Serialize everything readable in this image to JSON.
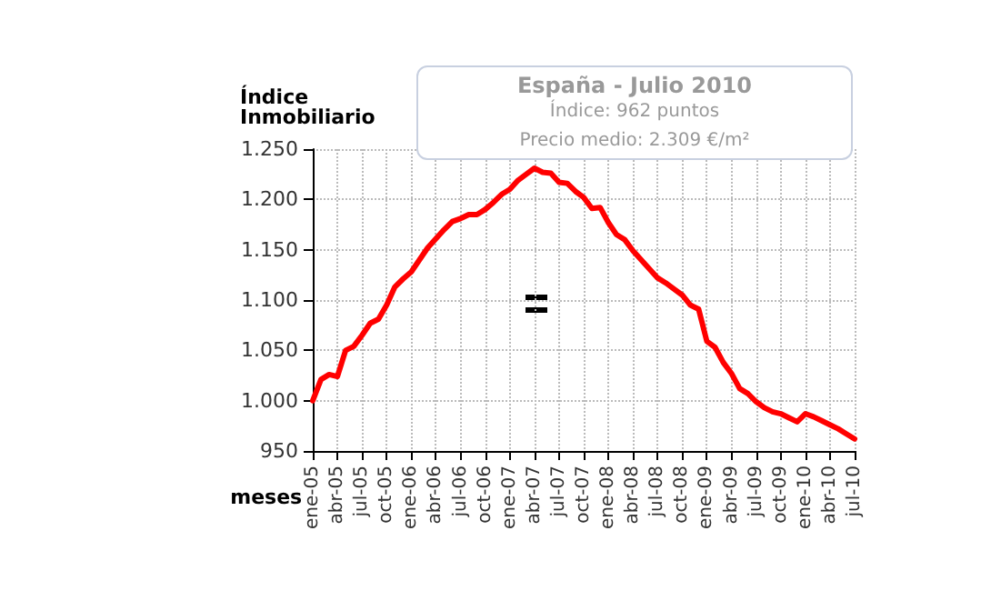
{
  "chart_data": {
    "type": "line",
    "ylabel": "Índice\nInmobiliario",
    "xlabel": "meses",
    "categories": [
      "ene-05",
      null,
      null,
      "abr-05",
      null,
      null,
      "jul-05",
      null,
      null,
      "oct-05",
      null,
      null,
      "ene-06",
      null,
      null,
      "abr-06",
      null,
      null,
      "jul-06",
      null,
      null,
      "oct-06",
      null,
      null,
      "ene-07",
      null,
      null,
      "abr-07",
      null,
      null,
      "jul-07",
      null,
      null,
      "oct-07",
      null,
      null,
      "ene-08",
      null,
      null,
      "abr-08",
      null,
      null,
      "jul-08",
      null,
      null,
      "oct-08",
      null,
      null,
      "ene-09",
      null,
      null,
      "abr-09",
      null,
      null,
      "jul-09",
      null,
      null,
      "oct-09",
      null,
      null,
      "ene-10",
      null,
      null,
      "abr-10",
      null,
      null,
      "jul-10"
    ],
    "series": [
      {
        "color": "#ff0000",
        "values": [
          1000,
          1021,
          1026,
          1024,
          1050,
          1054,
          1065,
          1077,
          1081,
          1095,
          1113,
          1121,
          1128,
          1140,
          1152,
          1161,
          1170,
          1178,
          1181,
          1185,
          1185,
          1190,
          1197,
          1205,
          1210,
          1219,
          1225,
          1231,
          1227,
          1226,
          1217,
          1216,
          1208,
          1202,
          1191,
          1192,
          1177,
          1165,
          1160,
          1149,
          1140,
          1131,
          1122,
          1117,
          1111,
          1105,
          1095,
          1091,
          1059,
          1053,
          1038,
          1027,
          1012,
          1007,
          999,
          993,
          989,
          987,
          983,
          979,
          987,
          984,
          980,
          976,
          972,
          967,
          962
        ]
      }
    ],
    "ylim": [
      950,
      1250
    ],
    "yticks": [
      {
        "value": 950,
        "label": "950"
      },
      {
        "value": 1000,
        "label": "1.000"
      },
      {
        "value": 1050,
        "label": "1.050"
      },
      {
        "value": 1100,
        "label": "1.100"
      },
      {
        "value": 1150,
        "label": "1.150"
      },
      {
        "value": 1200,
        "label": "1.200"
      },
      {
        "value": 1250,
        "label": "1.250"
      }
    ],
    "grid": true,
    "marker": "none",
    "line_style": "solid",
    "annotations": [
      "España - Julio 2010",
      "Índice: 962 puntos",
      "Precio medio: 2.309 €/m²"
    ]
  }
}
